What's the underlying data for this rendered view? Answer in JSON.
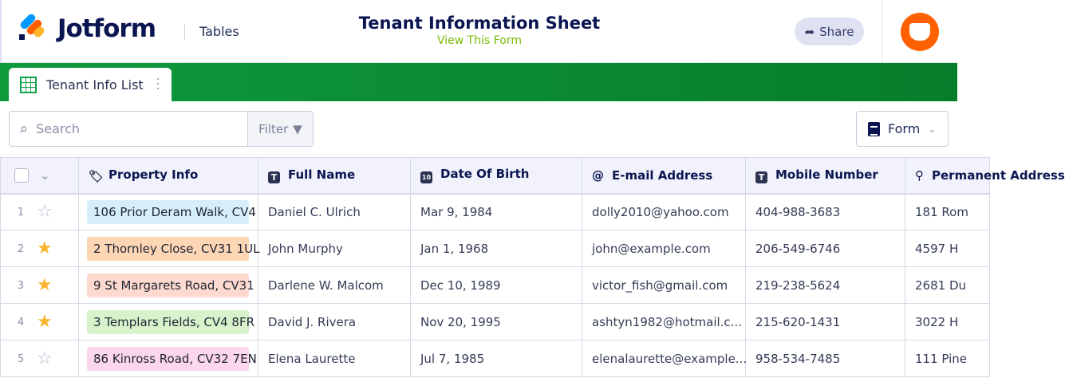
{
  "header": {
    "brand": "Jotform",
    "product": "Tables",
    "title": "Tenant Information Sheet",
    "view_form": "View This Form",
    "share": "Share"
  },
  "tab": {
    "label": "Tenant Info List"
  },
  "toolbar": {
    "search_placeholder": "Search",
    "filter": "Filter",
    "form": "Form"
  },
  "columns": [
    "Property Info",
    "Full Name",
    "Date Of Birth",
    "E-mail Address",
    "Mobile Number",
    "Permanent Address"
  ],
  "rows": [
    {
      "num": "1",
      "starred": false,
      "property": "106 Prior Deram Walk, CV4",
      "property_color": "#d5eefa",
      "name": "Daniel C. Ulrich",
      "dob": "Mar 9, 1984",
      "email": "dolly2010@yahoo.com",
      "mobile": "404-988-3683",
      "address": "181 Rom"
    },
    {
      "num": "2",
      "starred": true,
      "property": "2 Thornley Close, CV31 1UL",
      "property_color": "#fcd6b5",
      "name": "John Murphy",
      "dob": "Jan 1, 1968",
      "email": "john@example.com",
      "mobile": "206-549-6746",
      "address": "4597 H"
    },
    {
      "num": "3",
      "starred": true,
      "property": "9 St Margarets Road, CV31",
      "property_color": "#fdd9cf",
      "name": "Darlene W. Malcom",
      "dob": "Dec 10, 1989",
      "email": "victor_fish@gmail.com",
      "mobile": "219-238-5624",
      "address": "2681 Du"
    },
    {
      "num": "4",
      "starred": true,
      "property": "3 Templars Fields, CV4 8FR",
      "property_color": "#d8f3cc",
      "name": "David J. Rivera",
      "dob": "Nov 20, 1995",
      "email": "ashtyn1982@hotmail.c...",
      "mobile": "215-620-1431",
      "address": "3022 H"
    },
    {
      "num": "5",
      "starred": false,
      "property": "86 Kinross Road, CV32 7EN",
      "property_color": "#fbd6ec",
      "name": "Elena Laurette",
      "dob": "Jul 7, 1985",
      "email": "elenalaurette@example...",
      "mobile": "958-534-7485",
      "address": "111 Pine"
    }
  ],
  "colors": {
    "accent_green": "#0f9a3c",
    "star": "#fbb42d",
    "navy": "#0a1551",
    "view_form": "#78bb07",
    "avatar": "#ff6100"
  }
}
